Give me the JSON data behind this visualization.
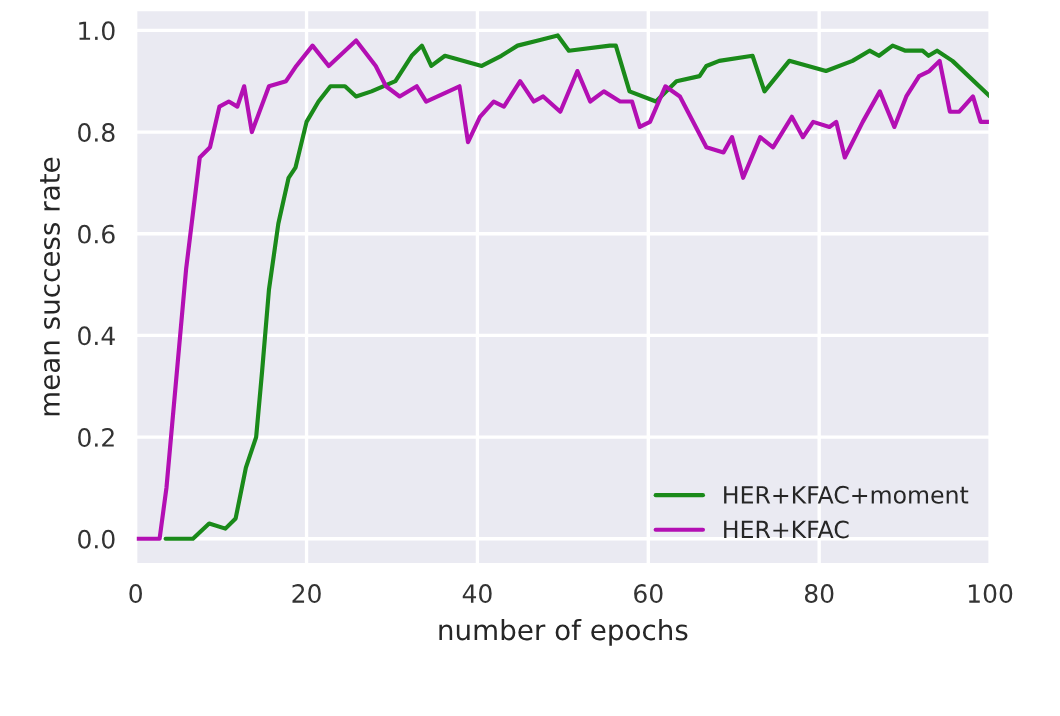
{
  "chart_data": {
    "type": "line",
    "xlabel": "number of epochs",
    "ylabel": "mean success rate",
    "xlim": [
      0,
      100
    ],
    "ylim": [
      -0.05,
      1.04
    ],
    "xticks": [
      0,
      20,
      40,
      60,
      80,
      100
    ],
    "yticks": [
      {
        "value": 0,
        "label": "0.0"
      },
      {
        "value": 0.2,
        "label": "0.2"
      },
      {
        "value": 0.4,
        "label": "0.4"
      },
      {
        "value": 0.6,
        "label": "0.6"
      },
      {
        "value": 0.8,
        "label": "0.8"
      },
      {
        "value": 1,
        "label": "1.0"
      }
    ],
    "grid": true,
    "legend": "bottom right",
    "line_style": "solid",
    "marker": "none",
    "series": [
      {
        "name": "HER+KFAC+moment",
        "color": "#1a8a1a",
        "x": [
          3.5,
          6.7,
          8.6,
          10.5,
          11.7,
          12.9,
          14.1,
          14.8,
          15.6,
          16.7,
          17.9,
          18.7,
          20,
          21.4,
          22.8,
          24.5,
          25.8,
          27.6,
          30.4,
          32.3,
          33.5,
          34.6,
          36.2,
          40.5,
          42.8,
          44.7,
          47.1,
          49.4,
          50.7,
          55.5,
          56.2,
          57.8,
          60.9,
          63.3,
          66,
          66.8,
          68.3,
          72.2,
          73.6,
          76.5,
          80.8,
          83.9,
          85.9,
          87,
          88.6,
          90.1,
          92.1,
          92.8,
          93.8,
          95.6,
          100
        ],
        "values": [
          0,
          0,
          0.03,
          0.02,
          0.04,
          0.14,
          0.2,
          0.33,
          0.49,
          0.62,
          0.71,
          0.73,
          0.82,
          0.86,
          0.89,
          0.89,
          0.87,
          0.88,
          0.9,
          0.95,
          0.97,
          0.93,
          0.95,
          0.93,
          0.95,
          0.97,
          0.98,
          0.99,
          0.96,
          0.97,
          0.97,
          0.88,
          0.86,
          0.9,
          0.91,
          0.93,
          0.94,
          0.95,
          0.88,
          0.94,
          0.92,
          0.94,
          0.96,
          0.95,
          0.97,
          0.96,
          0.96,
          0.95,
          0.96,
          0.94,
          0.87
        ]
      },
      {
        "name": "HER+KFAC",
        "color": "#b30fb3",
        "x": [
          0,
          2.8,
          3.6,
          5.9,
          7.5,
          8.7,
          9.8,
          10.9,
          11.9,
          12.7,
          13.6,
          15.6,
          17.6,
          18.8,
          20.7,
          22.6,
          25.8,
          28.1,
          29.3,
          30.9,
          32.9,
          34,
          37.9,
          38.9,
          40.3,
          41.9,
          43.1,
          45,
          46.6,
          47.7,
          49.7,
          51.7,
          53.2,
          54.8,
          56.7,
          58.1,
          59,
          60.2,
          62,
          63.7,
          66.8,
          68.8,
          69.8,
          71.1,
          73.1,
          74.6,
          76.8,
          78.1,
          79.3,
          81.2,
          82,
          83,
          85.1,
          87.1,
          88.8,
          90.2,
          91.7,
          92.9,
          94.1,
          95.3,
          96.4,
          98,
          98.9,
          100
        ],
        "values": [
          0,
          0,
          0.1,
          0.53,
          0.75,
          0.77,
          0.85,
          0.86,
          0.85,
          0.89,
          0.8,
          0.89,
          0.9,
          0.93,
          0.97,
          0.93,
          0.98,
          0.93,
          0.89,
          0.87,
          0.89,
          0.86,
          0.89,
          0.78,
          0.83,
          0.86,
          0.85,
          0.9,
          0.86,
          0.87,
          0.84,
          0.92,
          0.86,
          0.88,
          0.86,
          0.86,
          0.81,
          0.82,
          0.89,
          0.87,
          0.77,
          0.76,
          0.79,
          0.71,
          0.79,
          0.77,
          0.83,
          0.79,
          0.82,
          0.81,
          0.82,
          0.75,
          0.82,
          0.88,
          0.81,
          0.87,
          0.91,
          0.92,
          0.94,
          0.84,
          0.84,
          0.87,
          0.82,
          0.82
        ]
      }
    ]
  }
}
